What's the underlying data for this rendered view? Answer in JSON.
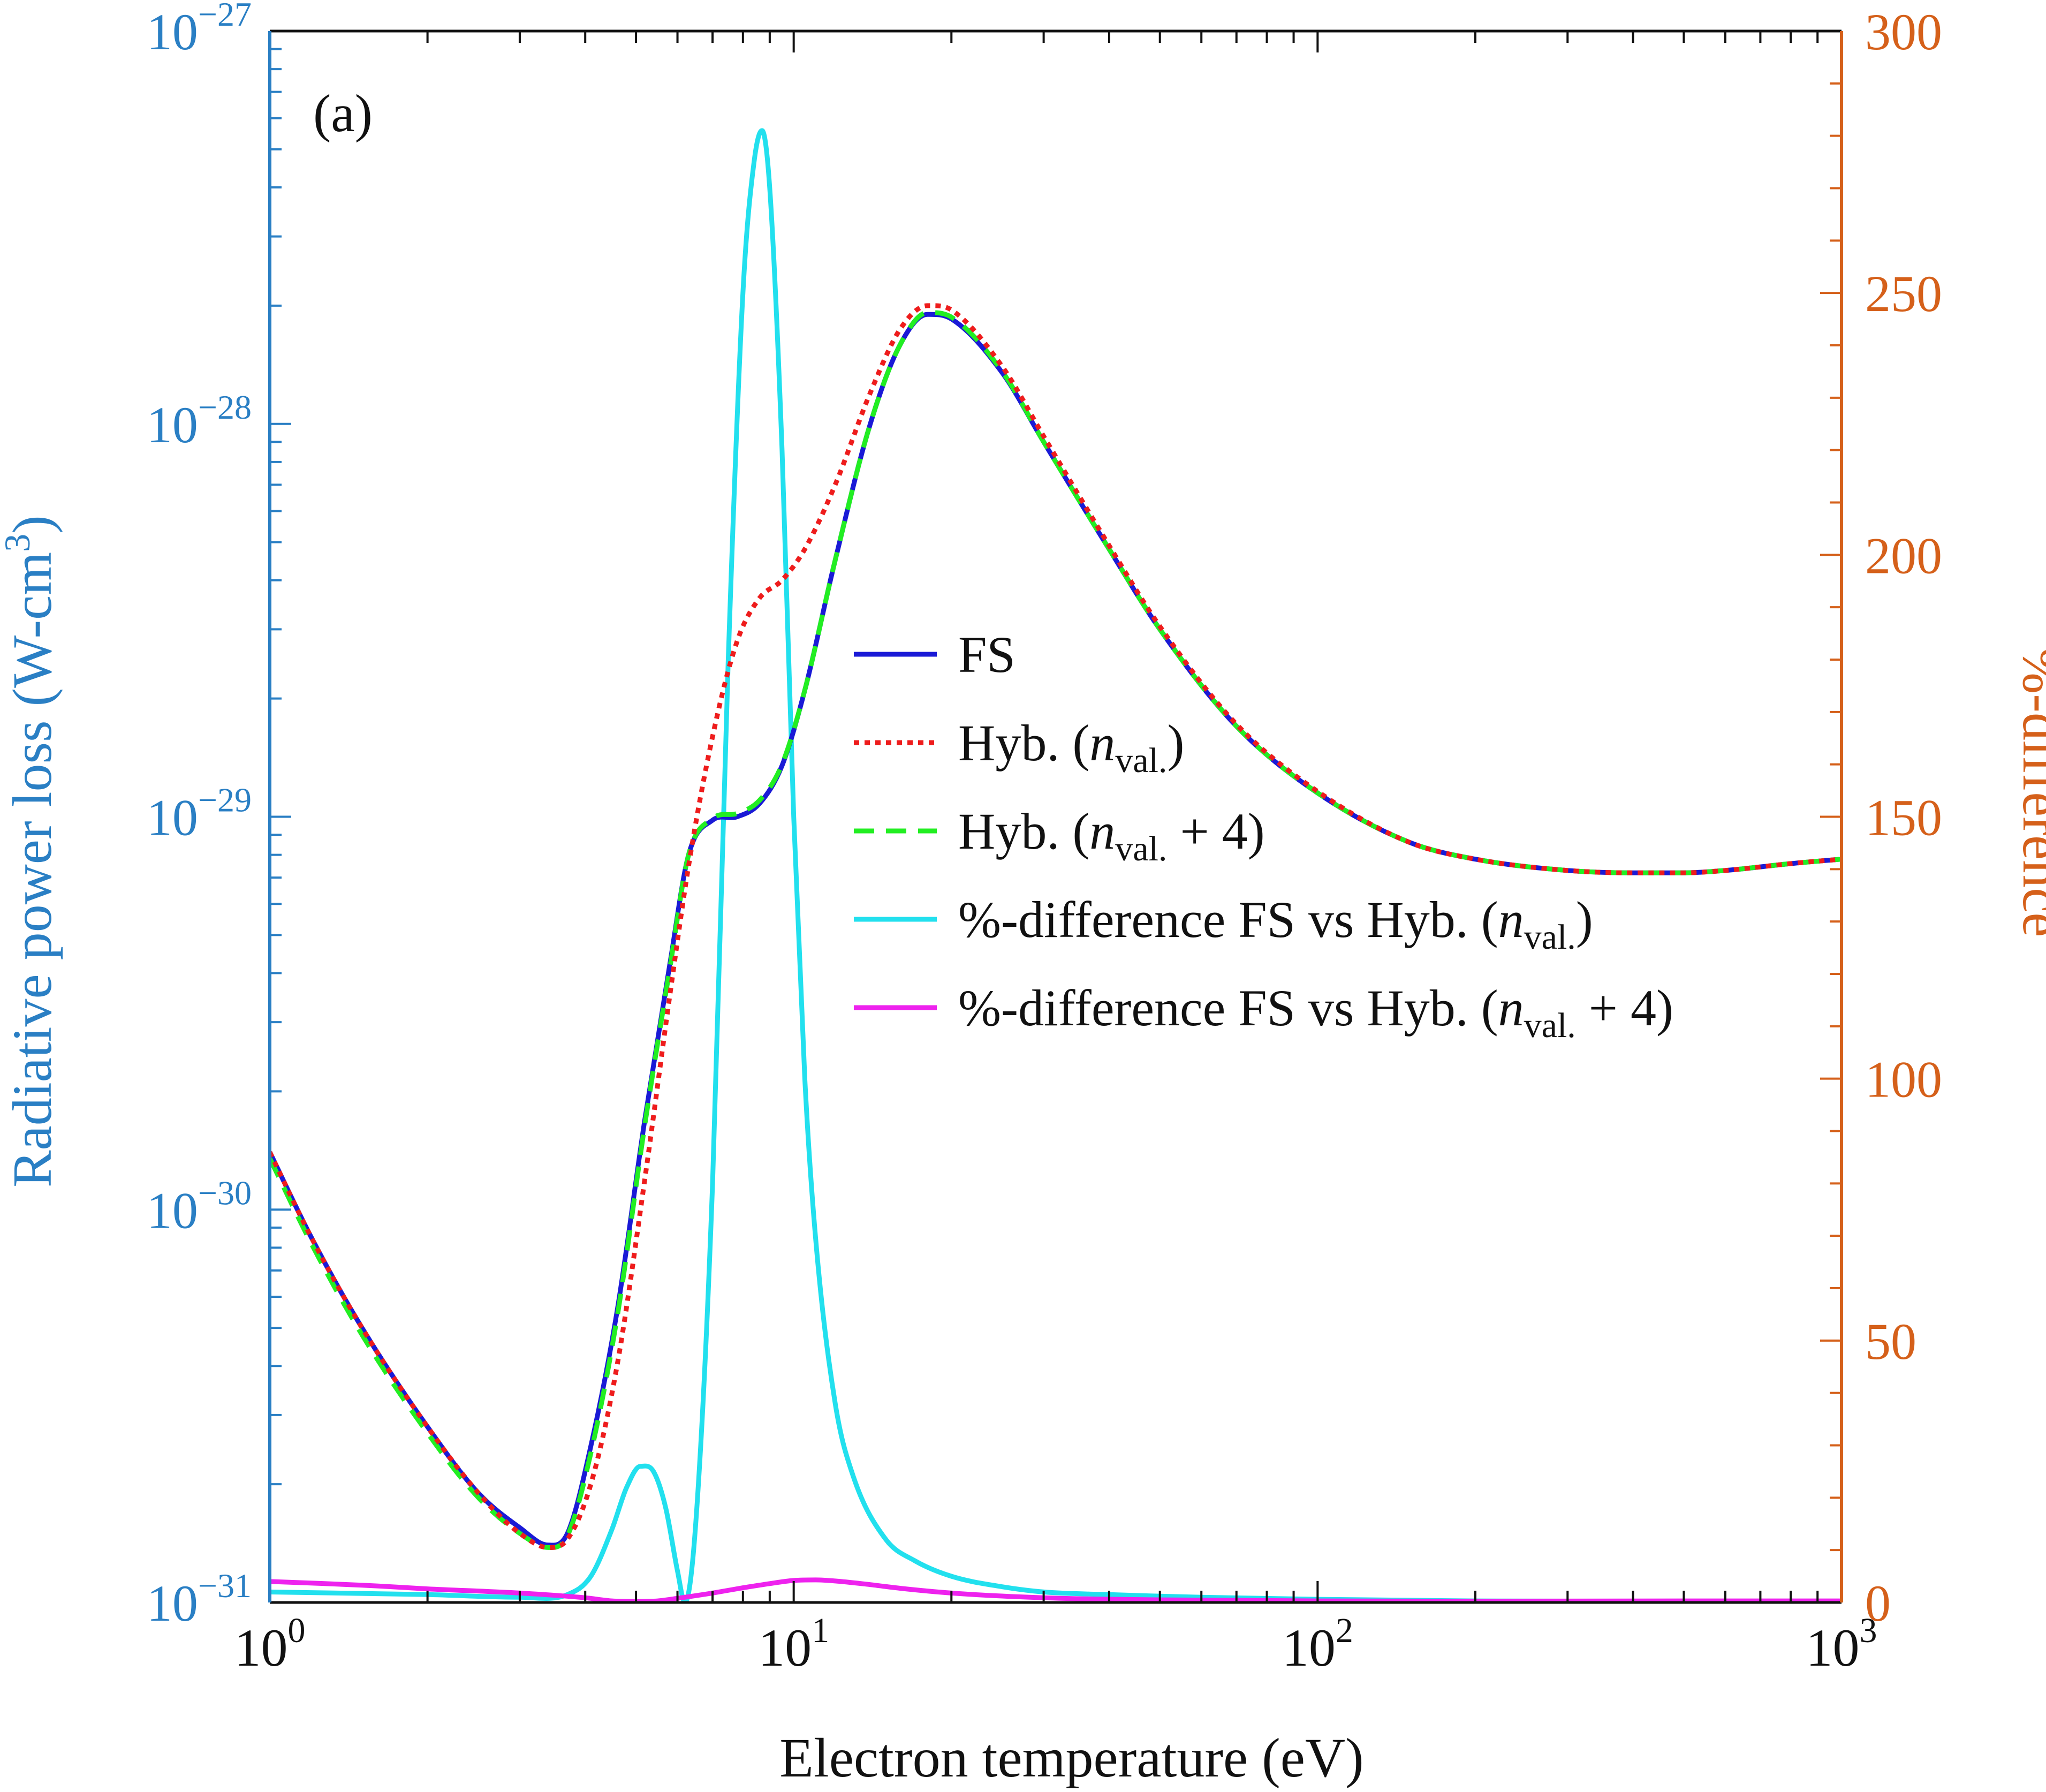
{
  "chart_data": {
    "type": "line",
    "panel_label": "(a)",
    "xlabel": "Electron temperature (eV)",
    "ylabel_left": "Radiative power loss (W-cm",
    "ylabel_left_sup": "3",
    "ylabel_left_close": ")",
    "ylabel_right": "%-difference",
    "x_scale": "log",
    "xlim": [
      1,
      1000
    ],
    "y_left_scale": "log",
    "y_left_lim": [
      1e-31,
      1e-27
    ],
    "y_right_lim": [
      0,
      300
    ],
    "x_ticks": [
      {
        "base": "10",
        "exp": "0"
      },
      {
        "base": "10",
        "exp": "1"
      },
      {
        "base": "10",
        "exp": "2"
      },
      {
        "base": "10",
        "exp": "3"
      }
    ],
    "y_left_ticks": [
      {
        "base": "10",
        "exp": "−31"
      },
      {
        "base": "10",
        "exp": "−30"
      },
      {
        "base": "10",
        "exp": "−29"
      },
      {
        "base": "10",
        "exp": "−28"
      },
      {
        "base": "10",
        "exp": "−27"
      }
    ],
    "y_right_ticks": [
      "0",
      "50",
      "100",
      "150",
      "200",
      "250",
      "300"
    ],
    "legend": {
      "placement": "center-right",
      "entries": [
        {
          "label": "FS",
          "color": "#1a1ad6",
          "style": "solid"
        },
        {
          "label": "Hyb. (n",
          "sub": "val.",
          "tail": ")",
          "color": "#ee1c1c",
          "style": "dotted"
        },
        {
          "label": "Hyb. (n",
          "sub": "val.",
          "tail": " + 4)",
          "color": "#22ee22",
          "style": "dashed"
        },
        {
          "label": "%-difference FS vs Hyb. (n",
          "sub": "val.",
          "tail": ")",
          "color": "#22e0ee",
          "style": "solid"
        },
        {
          "label": "%-difference FS vs Hyb. (n",
          "sub": "val.",
          "tail": " + 4)",
          "color": "#ee22ee",
          "style": "solid"
        }
      ]
    },
    "series": [
      {
        "name": "FS",
        "axis": "left",
        "color": "#1a1ad6",
        "style": "solid",
        "x": [
          1,
          1.2,
          1.5,
          2,
          2.5,
          3,
          3.4,
          3.7,
          4.1,
          4.6,
          5.2,
          5.8,
          6.3,
          7,
          7.8,
          8.6,
          9.5,
          10.5,
          12,
          14,
          16,
          18,
          20,
          25,
          30,
          40,
          50,
          70,
          100,
          150,
          200,
          300,
          400,
          500,
          600,
          800,
          1000
        ],
        "y": [
          1.4e-30,
          8.5e-31,
          5e-31,
          2.8e-31,
          1.9e-31,
          1.55e-31,
          1.4e-31,
          1.5e-31,
          2.5e-31,
          5.5e-31,
          1.7e-30,
          4.2e-30,
          8e-30,
          9.8e-30,
          1e-29,
          1.08e-29,
          1.35e-29,
          2.1e-29,
          4.5e-29,
          1e-28,
          1.6e-28,
          1.9e-28,
          1.85e-28,
          1.35e-28,
          9e-29,
          4.8e-29,
          3e-29,
          1.7e-29,
          1.15e-29,
          8.6e-30,
          7.8e-30,
          7.3e-30,
          7.2e-30,
          7.2e-30,
          7.3e-30,
          7.6e-30,
          7.8e-30
        ]
      },
      {
        "name": "Hyb. (n_val.)",
        "axis": "left",
        "color": "#ee1c1c",
        "style": "dotted",
        "x": [
          1,
          1.2,
          1.5,
          2,
          2.5,
          3,
          3.4,
          3.7,
          4.1,
          4.6,
          5.2,
          5.8,
          6.3,
          7,
          7.8,
          8.6,
          9.5,
          10.5,
          12,
          14,
          16,
          18,
          20,
          25,
          30,
          40,
          50,
          70,
          100,
          150,
          200,
          300,
          400,
          500,
          600,
          800,
          1000
        ],
        "y": [
          1.4e-30,
          8.5e-31,
          5e-31,
          2.8e-31,
          1.9e-31,
          1.5e-31,
          1.38e-31,
          1.45e-31,
          2e-31,
          4e-31,
          1.2e-30,
          3.5e-30,
          7.5e-30,
          1.6e-29,
          2.8e-29,
          3.6e-29,
          4e-29,
          4.8e-29,
          7e-29,
          1.2e-28,
          1.75e-28,
          2e-28,
          1.95e-28,
          1.4e-28,
          9.3e-29,
          4.9e-29,
          3.05e-29,
          1.72e-29,
          1.16e-29,
          8.6e-30,
          7.8e-30,
          7.3e-30,
          7.2e-30,
          7.2e-30,
          7.3e-30,
          7.6e-30,
          7.8e-30
        ]
      },
      {
        "name": "Hyb. (n_val. + 4)",
        "axis": "left",
        "color": "#22ee22",
        "style": "dashed",
        "x": [
          1,
          1.2,
          1.5,
          2,
          2.5,
          3,
          3.4,
          3.7,
          4.1,
          4.6,
          5.2,
          5.8,
          6.3,
          7,
          7.8,
          8.6,
          9.5,
          10.5,
          12,
          14,
          16,
          18,
          20,
          25,
          30,
          40,
          50,
          70,
          100,
          150,
          200,
          300,
          400,
          500,
          600,
          800,
          1000
        ],
        "y": [
          1.35e-30,
          8.2e-31,
          4.8e-31,
          2.7e-31,
          1.85e-31,
          1.5e-31,
          1.38e-31,
          1.48e-31,
          2.4e-31,
          5.3e-31,
          1.65e-30,
          4.1e-30,
          8e-30,
          9.9e-30,
          1.02e-29,
          1.1e-29,
          1.36e-29,
          2.1e-29,
          4.5e-29,
          1e-28,
          1.6e-28,
          1.92e-28,
          1.87e-28,
          1.36e-28,
          9e-29,
          4.8e-29,
          3e-29,
          1.7e-29,
          1.15e-29,
          8.6e-30,
          7.8e-30,
          7.3e-30,
          7.2e-30,
          7.2e-30,
          7.3e-30,
          7.6e-30,
          7.8e-30
        ]
      },
      {
        "name": "%-difference FS vs Hyb. (n_val.)",
        "axis": "right",
        "color": "#22e0ee",
        "style": "solid",
        "x": [
          1,
          2,
          3,
          3.7,
          4.1,
          4.5,
          4.8,
          5.1,
          5.4,
          5.7,
          6.0,
          6.2,
          6.5,
          7,
          7.5,
          8,
          8.4,
          8.7,
          9.0,
          9.5,
          10,
          10.5,
          11,
          12,
          13,
          15,
          17,
          20,
          25,
          30,
          40,
          60,
          100,
          200,
          500,
          1000
        ],
        "y": [
          2,
          1.5,
          1,
          1.5,
          5,
          14,
          22,
          26,
          25,
          18,
          6,
          0,
          15,
          80,
          180,
          250,
          275,
          281,
          270,
          220,
          150,
          100,
          70,
          38,
          24,
          12,
          8,
          5,
          3,
          2,
          1.5,
          1,
          0.6,
          0.3,
          0.2,
          0.1
        ]
      },
      {
        "name": "%-difference FS vs Hyb. (n_val. + 4)",
        "axis": "right",
        "color": "#ee22ee",
        "style": "solid",
        "x": [
          1,
          1.5,
          2,
          3,
          4,
          4.5,
          5,
          5.5,
          6,
          7,
          8,
          9,
          10,
          11,
          12,
          14,
          16,
          20,
          30,
          50,
          100,
          200,
          500,
          1000
        ],
        "y": [
          4,
          3.3,
          2.6,
          1.8,
          0.9,
          0.3,
          0.2,
          0.3,
          0.8,
          1.8,
          2.8,
          3.6,
          4.2,
          4.3,
          4.1,
          3.4,
          2.7,
          1.8,
          0.9,
          0.5,
          0.3,
          0.25,
          0.3,
          0.3
        ]
      }
    ]
  }
}
